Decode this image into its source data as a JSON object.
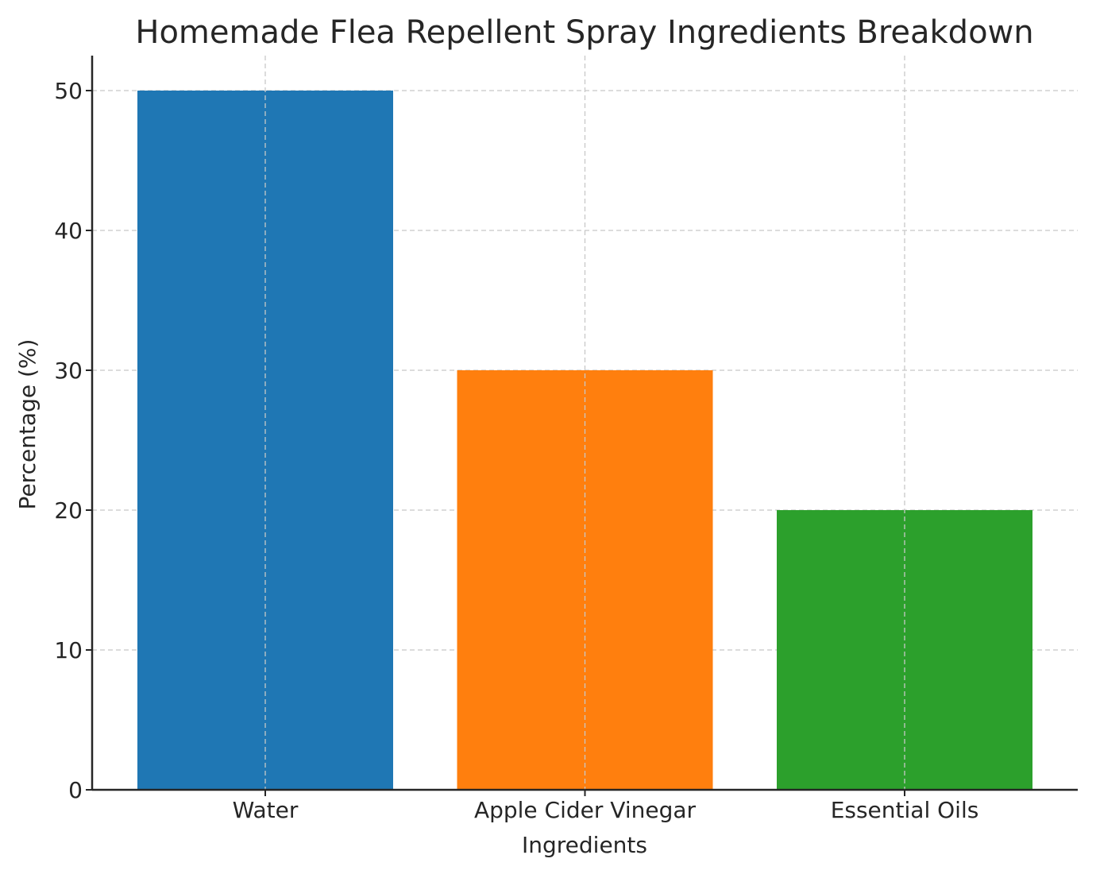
{
  "chart_data": {
    "type": "bar",
    "title": "Homemade Flea Repellent Spray Ingredients Breakdown",
    "xlabel": "Ingredients",
    "ylabel": "Percentage (%)",
    "categories": [
      "Water",
      "Apple Cider Vinegar",
      "Essential Oils"
    ],
    "values": [
      50,
      30,
      20
    ],
    "colors": [
      "#1f77b4",
      "#ff7f0e",
      "#2ca02c"
    ],
    "ylim": [
      0,
      52.5
    ],
    "yticks": [
      0,
      10,
      20,
      30,
      40,
      50
    ],
    "grid": true,
    "legend": "none"
  }
}
